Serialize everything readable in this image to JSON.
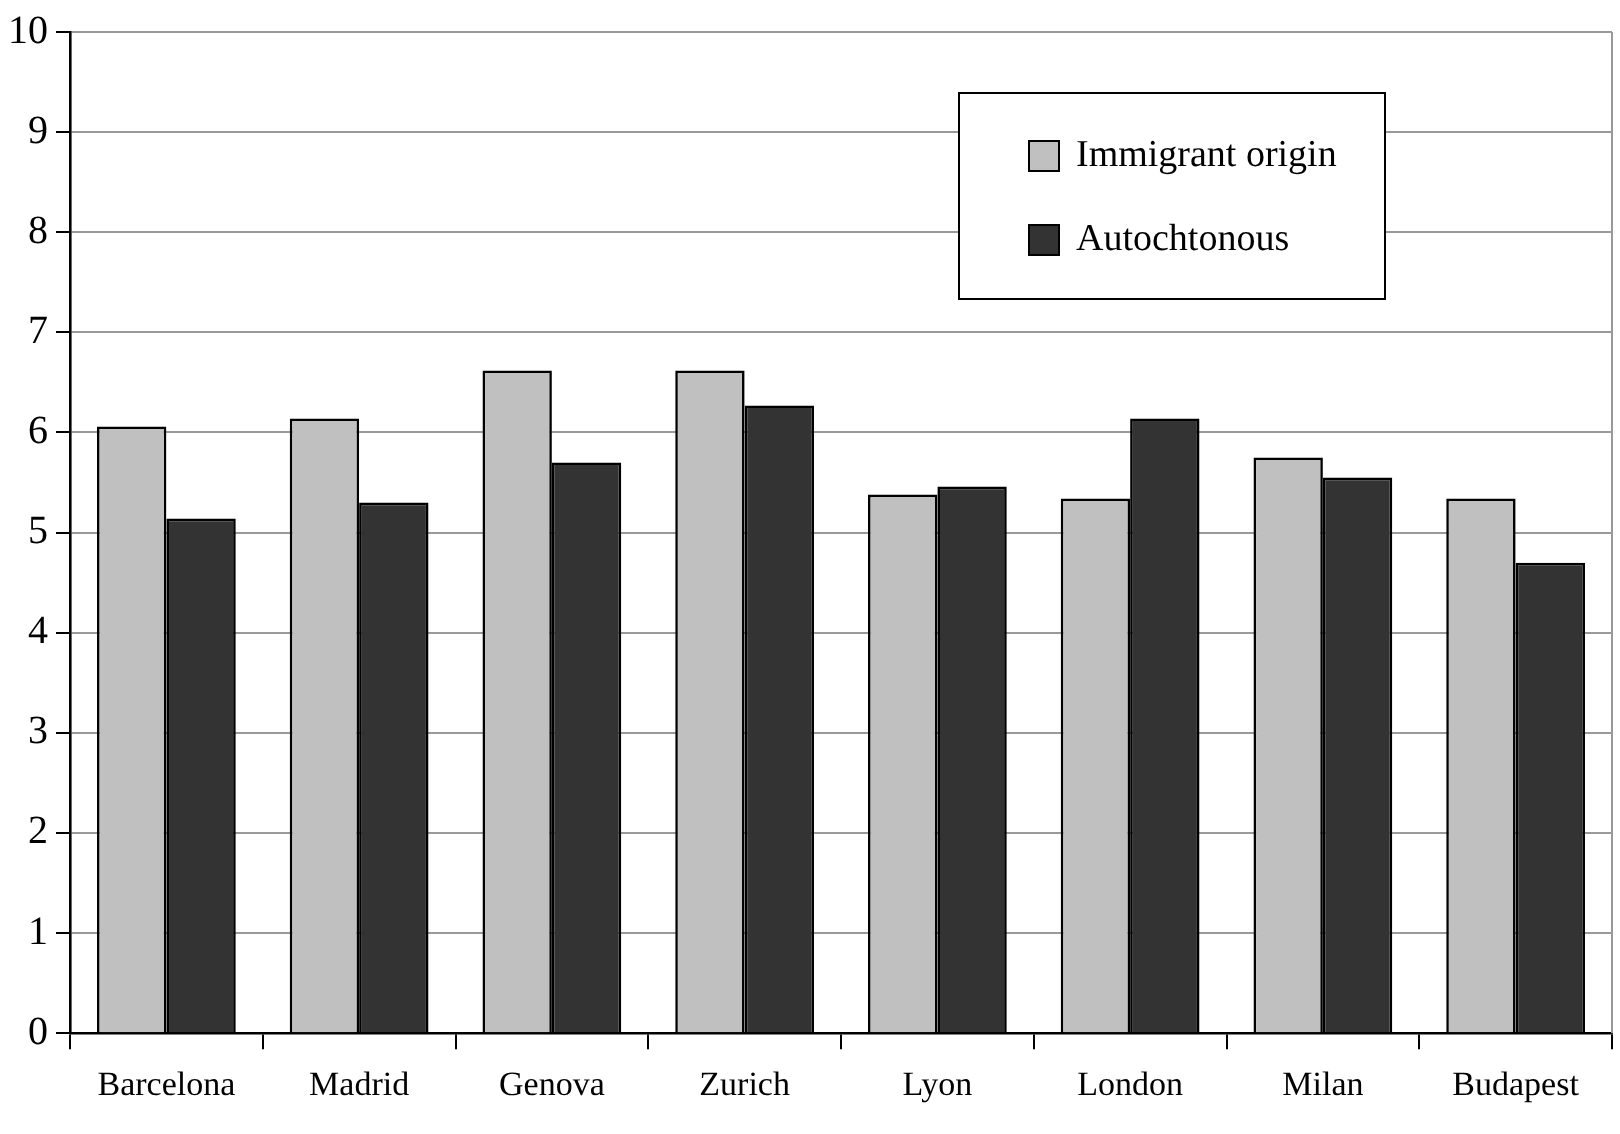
{
  "chart_data": {
    "type": "bar",
    "categories": [
      "Barcelona",
      "Madrid",
      "Genova",
      "Zurich",
      "Lyon",
      "London",
      "Milan",
      "Budapest"
    ],
    "series": [
      {
        "name": "Immigrant origin",
        "color": "#c0c0c0",
        "values": [
          6.06,
          6.14,
          6.62,
          6.62,
          5.38,
          5.34,
          5.75,
          5.34
        ]
      },
      {
        "name": "Autochtonous",
        "color": "#333333",
        "values": [
          5.14,
          5.3,
          5.7,
          6.27,
          5.46,
          6.14,
          5.55,
          4.7
        ]
      }
    ],
    "ylim": [
      0,
      10
    ],
    "yticks": [
      0,
      1,
      2,
      3,
      4,
      5,
      6,
      7,
      8,
      9,
      10
    ],
    "grid": "y",
    "legend": "top right"
  }
}
